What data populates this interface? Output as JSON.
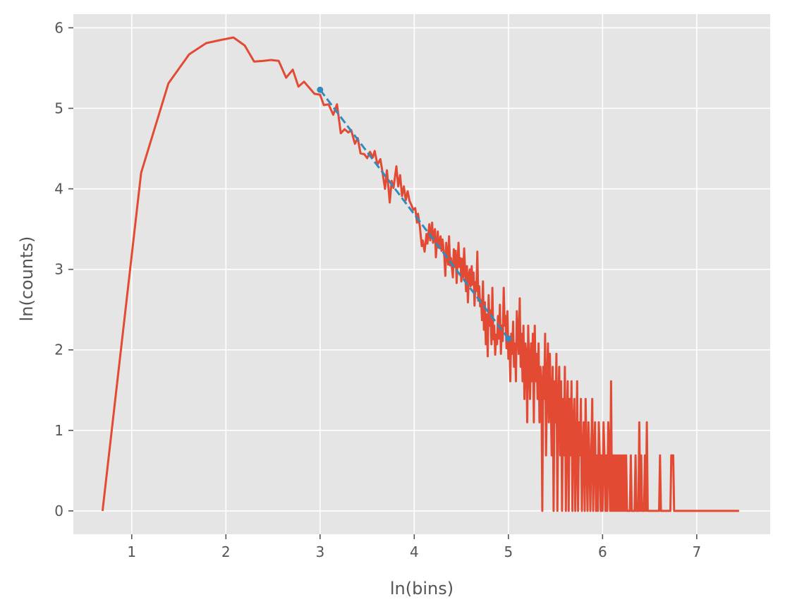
{
  "chart_data": {
    "type": "line",
    "title": "",
    "xlabel": "ln(bins)",
    "ylabel": "ln(counts)",
    "xlim": [
      0.38,
      7.78
    ],
    "ylim": [
      -0.29,
      6.17
    ],
    "xticks": [
      1,
      2,
      3,
      4,
      5,
      6,
      7
    ],
    "yticks": [
      0,
      1,
      2,
      3,
      4,
      5,
      6
    ],
    "grid": true,
    "legend": "none",
    "colors": {
      "background": "#e5e5e5",
      "grid": "#ffffff",
      "data": "#e24a33",
      "fit": "#348abd",
      "text": "#555555"
    },
    "series": [
      {
        "style": "solid",
        "color": "#e24a33",
        "points": [
          [
            0.69,
            0.0
          ],
          [
            1.1,
            4.2
          ],
          [
            1.39,
            5.31
          ],
          [
            1.61,
            5.67
          ],
          [
            1.79,
            5.81
          ],
          [
            1.95,
            5.85
          ],
          [
            2.08,
            5.88
          ],
          [
            2.2,
            5.78
          ],
          [
            2.3,
            5.58
          ],
          [
            2.4,
            5.59
          ],
          [
            2.48,
            5.6
          ],
          [
            2.56,
            5.59
          ],
          [
            2.64,
            5.38
          ],
          [
            2.71,
            5.48
          ],
          [
            2.77,
            5.27
          ],
          [
            2.83,
            5.33
          ],
          [
            2.89,
            5.25
          ],
          [
            2.94,
            5.18
          ],
          [
            3.0,
            5.17
          ],
          [
            3.04,
            5.04
          ],
          [
            3.09,
            5.05
          ],
          [
            3.14,
            4.92
          ],
          [
            3.18,
            5.05
          ],
          [
            3.22,
            4.69
          ],
          [
            3.26,
            4.74
          ],
          [
            3.3,
            4.7
          ],
          [
            3.33,
            4.73
          ],
          [
            3.37,
            4.56
          ],
          [
            3.4,
            4.63
          ],
          [
            3.43,
            4.44
          ],
          [
            3.47,
            4.43
          ],
          [
            3.5,
            4.38
          ],
          [
            3.53,
            4.46
          ],
          [
            3.56,
            4.39
          ],
          [
            3.58,
            4.47
          ],
          [
            3.61,
            4.3
          ],
          [
            3.64,
            4.37
          ],
          [
            3.66,
            4.23
          ],
          [
            3.69,
            4.0
          ],
          [
            3.71,
            4.23
          ],
          [
            3.74,
            3.83
          ],
          [
            3.76,
            4.1
          ],
          [
            3.78,
            4.01
          ],
          [
            3.81,
            4.28
          ],
          [
            3.83,
            4.03
          ],
          [
            3.85,
            4.17
          ],
          [
            3.87,
            3.91
          ],
          [
            3.89,
            4.03
          ],
          [
            3.91,
            3.86
          ],
          [
            3.93,
            3.97
          ],
          [
            3.95,
            3.85
          ],
          [
            3.97,
            3.8
          ],
          [
            3.99,
            3.74
          ],
          [
            4.01,
            3.76
          ],
          [
            4.03,
            3.58
          ],
          [
            4.04,
            3.69
          ],
          [
            4.06,
            3.53
          ],
          [
            4.08,
            3.29
          ],
          [
            4.09,
            3.36
          ],
          [
            4.11,
            3.22
          ],
          [
            4.13,
            3.44
          ],
          [
            4.14,
            3.32
          ],
          [
            4.16,
            3.56
          ],
          [
            4.17,
            3.36
          ],
          [
            4.19,
            3.58
          ],
          [
            4.2,
            3.33
          ],
          [
            4.22,
            3.5
          ],
          [
            4.23,
            3.15
          ],
          [
            4.25,
            3.47
          ],
          [
            4.26,
            3.27
          ],
          [
            4.28,
            3.41
          ],
          [
            4.29,
            3.23
          ],
          [
            4.3,
            3.37
          ],
          [
            4.32,
            3.16
          ],
          [
            4.33,
            2.92
          ],
          [
            4.34,
            3.33
          ],
          [
            4.36,
            3.06
          ],
          [
            4.37,
            3.41
          ],
          [
            4.38,
            3.05
          ],
          [
            4.39,
            3.14
          ],
          [
            4.41,
            2.9
          ],
          [
            4.42,
            3.25
          ],
          [
            4.43,
            3.03
          ],
          [
            4.44,
            3.23
          ],
          [
            4.45,
            2.83
          ],
          [
            4.47,
            3.33
          ],
          [
            4.48,
            3.03
          ],
          [
            4.49,
            3.14
          ],
          [
            4.5,
            2.85
          ],
          [
            4.51,
            3.13
          ],
          [
            4.52,
            2.9
          ],
          [
            4.53,
            3.26
          ],
          [
            4.55,
            2.73
          ],
          [
            4.56,
            3.04
          ],
          [
            4.57,
            2.59
          ],
          [
            4.58,
            2.93
          ],
          [
            4.59,
            3.0
          ],
          [
            4.6,
            2.79
          ],
          [
            4.61,
            3.04
          ],
          [
            4.62,
            2.81
          ],
          [
            4.63,
            2.96
          ],
          [
            4.64,
            2.55
          ],
          [
            4.65,
            2.84
          ],
          [
            4.66,
            2.73
          ],
          [
            4.67,
            3.22
          ],
          [
            4.68,
            2.61
          ],
          [
            4.69,
            2.79
          ],
          [
            4.7,
            2.54
          ],
          [
            4.71,
            2.62
          ],
          [
            4.72,
            2.37
          ],
          [
            4.73,
            2.85
          ],
          [
            4.74,
            2.25
          ],
          [
            4.75,
            2.59
          ],
          [
            4.76,
            2.07
          ],
          [
            4.77,
            2.44
          ],
          [
            4.78,
            1.92
          ],
          [
            4.79,
            2.68
          ],
          [
            4.8,
            2.3
          ],
          [
            4.81,
            2.49
          ],
          [
            4.82,
            2.07
          ],
          [
            4.83,
            2.77
          ],
          [
            4.84,
            2.13
          ],
          [
            4.85,
            2.3
          ],
          [
            4.86,
            1.94
          ],
          [
            4.87,
            2.19
          ],
          [
            4.88,
            2.07
          ],
          [
            4.89,
            2.42
          ],
          [
            4.9,
            2.14
          ],
          [
            4.91,
            2.56
          ],
          [
            4.92,
            1.95
          ],
          [
            4.93,
            2.3
          ],
          [
            4.94,
            2.11
          ],
          [
            4.95,
            2.77
          ],
          [
            4.96,
            2.3
          ],
          [
            4.97,
            2.42
          ],
          [
            4.98,
            2.02
          ],
          [
            4.99,
            2.48
          ],
          [
            5.0,
            1.89
          ],
          [
            5.01,
            2.14
          ],
          [
            5.02,
            1.61
          ],
          [
            5.03,
            2.2
          ],
          [
            5.04,
            1.95
          ],
          [
            5.05,
            2.35
          ],
          [
            5.06,
            1.79
          ],
          [
            5.07,
            2.08
          ],
          [
            5.08,
            1.61
          ],
          [
            5.09,
            2.48
          ],
          [
            5.1,
            2.2
          ],
          [
            5.11,
            1.95
          ],
          [
            5.12,
            2.64
          ],
          [
            5.13,
            1.79
          ],
          [
            5.14,
            2.2
          ],
          [
            5.15,
            1.61
          ],
          [
            5.16,
            2.3
          ],
          [
            5.17,
            1.39
          ],
          [
            5.18,
            2.08
          ],
          [
            5.19,
            1.95
          ],
          [
            5.2,
            1.1
          ],
          [
            5.21,
            2.3
          ],
          [
            5.22,
            1.79
          ],
          [
            5.23,
            1.39
          ],
          [
            5.24,
            2.08
          ],
          [
            5.25,
            1.61
          ],
          [
            5.26,
            2.2
          ],
          [
            5.27,
            1.1
          ],
          [
            5.28,
            2.3
          ],
          [
            5.29,
            1.61
          ],
          [
            5.3,
            1.95
          ],
          [
            5.31,
            1.39
          ],
          [
            5.32,
            2.08
          ],
          [
            5.33,
            1.1
          ],
          [
            5.34,
            1.79
          ],
          [
            5.35,
            1.61
          ],
          [
            5.36,
            0.0
          ],
          [
            5.37,
            1.79
          ],
          [
            5.38,
            1.39
          ],
          [
            5.39,
            2.2
          ],
          [
            5.4,
            0.69
          ],
          [
            5.41,
            1.61
          ],
          [
            5.42,
            2.08
          ],
          [
            5.43,
            1.1
          ],
          [
            5.44,
            1.95
          ],
          [
            5.45,
            1.39
          ],
          [
            5.46,
            0.69
          ],
          [
            5.47,
            1.79
          ],
          [
            5.48,
            0.0
          ],
          [
            5.49,
            1.61
          ],
          [
            5.5,
            1.1
          ],
          [
            5.51,
            1.95
          ],
          [
            5.52,
            0.0
          ],
          [
            5.53,
            1.39
          ],
          [
            5.54,
            1.79
          ],
          [
            5.55,
            0.69
          ],
          [
            5.56,
            1.61
          ],
          [
            5.57,
            0.0
          ],
          [
            5.58,
            1.39
          ],
          [
            5.59,
            0.69
          ],
          [
            5.6,
            1.79
          ],
          [
            5.61,
            0.0
          ],
          [
            5.62,
            1.1
          ],
          [
            5.63,
            1.61
          ],
          [
            5.64,
            0.0
          ],
          [
            5.65,
            1.39
          ],
          [
            5.66,
            0.69
          ],
          [
            5.67,
            1.61
          ],
          [
            5.68,
            0.0
          ],
          [
            5.69,
            1.1
          ],
          [
            5.7,
            1.39
          ],
          [
            5.71,
            0.0
          ],
          [
            5.72,
            0.69
          ],
          [
            5.73,
            1.61
          ],
          [
            5.74,
            0.0
          ],
          [
            5.75,
            1.1
          ],
          [
            5.76,
            0.69
          ],
          [
            5.77,
            1.39
          ],
          [
            5.78,
            0.0
          ],
          [
            5.79,
            0.69
          ],
          [
            5.8,
            1.1
          ],
          [
            5.81,
            0.0
          ],
          [
            5.82,
            1.39
          ],
          [
            5.83,
            0.69
          ],
          [
            5.84,
            0.0
          ],
          [
            5.85,
            1.1
          ],
          [
            5.86,
            0.69
          ],
          [
            5.87,
            0.0
          ],
          [
            5.88,
            0.69
          ],
          [
            5.89,
            1.39
          ],
          [
            5.9,
            0.0
          ],
          [
            5.91,
            0.69
          ],
          [
            5.92,
            1.1
          ],
          [
            5.93,
            0.0
          ],
          [
            5.94,
            0.69
          ],
          [
            5.95,
            0.0
          ],
          [
            5.96,
            1.1
          ],
          [
            5.97,
            0.69
          ],
          [
            5.98,
            0.0
          ],
          [
            5.99,
            0.69
          ],
          [
            6.0,
            0.0
          ],
          [
            6.01,
            1.1
          ],
          [
            6.02,
            0.69
          ],
          [
            6.03,
            0.0
          ],
          [
            6.04,
            0.69
          ],
          [
            6.05,
            0.0
          ],
          [
            6.06,
            1.1
          ],
          [
            6.07,
            0.69
          ],
          [
            6.08,
            0.0
          ],
          [
            6.09,
            1.61
          ],
          [
            6.1,
            0.0
          ],
          [
            6.11,
            0.69
          ],
          [
            6.12,
            0.0
          ],
          [
            6.13,
            0.69
          ],
          [
            6.14,
            0.0
          ],
          [
            6.15,
            0.69
          ],
          [
            6.16,
            0.0
          ],
          [
            6.17,
            0.69
          ],
          [
            6.18,
            0.0
          ],
          [
            6.19,
            0.69
          ],
          [
            6.2,
            0.0
          ],
          [
            6.21,
            0.69
          ],
          [
            6.22,
            0.0
          ],
          [
            6.23,
            0.69
          ],
          [
            6.24,
            0.0
          ],
          [
            6.25,
            0.69
          ],
          [
            6.26,
            0.0
          ],
          [
            6.29,
            0.0
          ],
          [
            6.3,
            0.69
          ],
          [
            6.31,
            0.0
          ],
          [
            6.34,
            0.0
          ],
          [
            6.35,
            0.69
          ],
          [
            6.36,
            0.0
          ],
          [
            6.38,
            0.0
          ],
          [
            6.39,
            1.1
          ],
          [
            6.4,
            0.0
          ],
          [
            6.41,
            0.69
          ],
          [
            6.42,
            0.0
          ],
          [
            6.44,
            0.0
          ],
          [
            6.45,
            0.69
          ],
          [
            6.46,
            0.0
          ],
          [
            6.47,
            1.1
          ],
          [
            6.48,
            0.0
          ],
          [
            6.6,
            0.0
          ],
          [
            6.61,
            0.69
          ],
          [
            6.62,
            0.0
          ],
          [
            6.72,
            0.0
          ],
          [
            6.73,
            0.69
          ],
          [
            6.75,
            0.69
          ],
          [
            6.76,
            0.0
          ],
          [
            7.45,
            0.0
          ]
        ]
      },
      {
        "style": "dashed",
        "color": "#348abd",
        "marker": "circle",
        "points": [
          [
            3.0,
            5.23
          ],
          [
            5.0,
            2.14
          ]
        ]
      }
    ]
  }
}
